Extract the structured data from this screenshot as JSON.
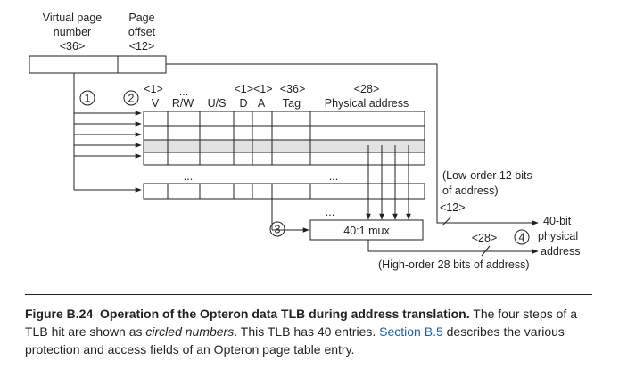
{
  "virtual_address": {
    "vpn_label_line1": "Virtual page",
    "vpn_label_line2": "number",
    "vpn_bits": "<36>",
    "offset_label_line1": "Page",
    "offset_label_line2": "offset",
    "offset_bits": "<12>"
  },
  "tlb_fields": {
    "v_bits": "<1>",
    "v": "V",
    "rw": "R/W",
    "us": "U/S",
    "d": "D",
    "a": "A",
    "da_bits": "<1><1>",
    "tag_bits": "<36>",
    "tag": "Tag",
    "pa_bits": "<28>",
    "pa": "Physical address",
    "dots": "..."
  },
  "steps": [
    "1",
    "2",
    "3",
    "4"
  ],
  "mux": {
    "label": "40:1 mux"
  },
  "annotations": {
    "low_order_line1": "(Low-order 12 bits",
    "low_order_line2": "of address)",
    "low_bits": "<12>",
    "high_bits": "<28>",
    "high_order": "(High-order 28 bits of address)",
    "out_line1": "40-bit",
    "out_line2": "physical",
    "out_line3": "address"
  },
  "caption": {
    "label": "Figure B.24",
    "title": "Operation of the Opteron data TLB during address translation.",
    "text1": " The four steps of a TLB hit are shown as ",
    "italic": "circled numbers",
    "text2": ". This TLB has 40 entries. ",
    "link": "Section B.5",
    "text3": " describes the various protection and access fields of an Opteron page table entry."
  },
  "colors": {
    "highlight_row": "#e2e2e2",
    "link": "#1f5fa8"
  }
}
